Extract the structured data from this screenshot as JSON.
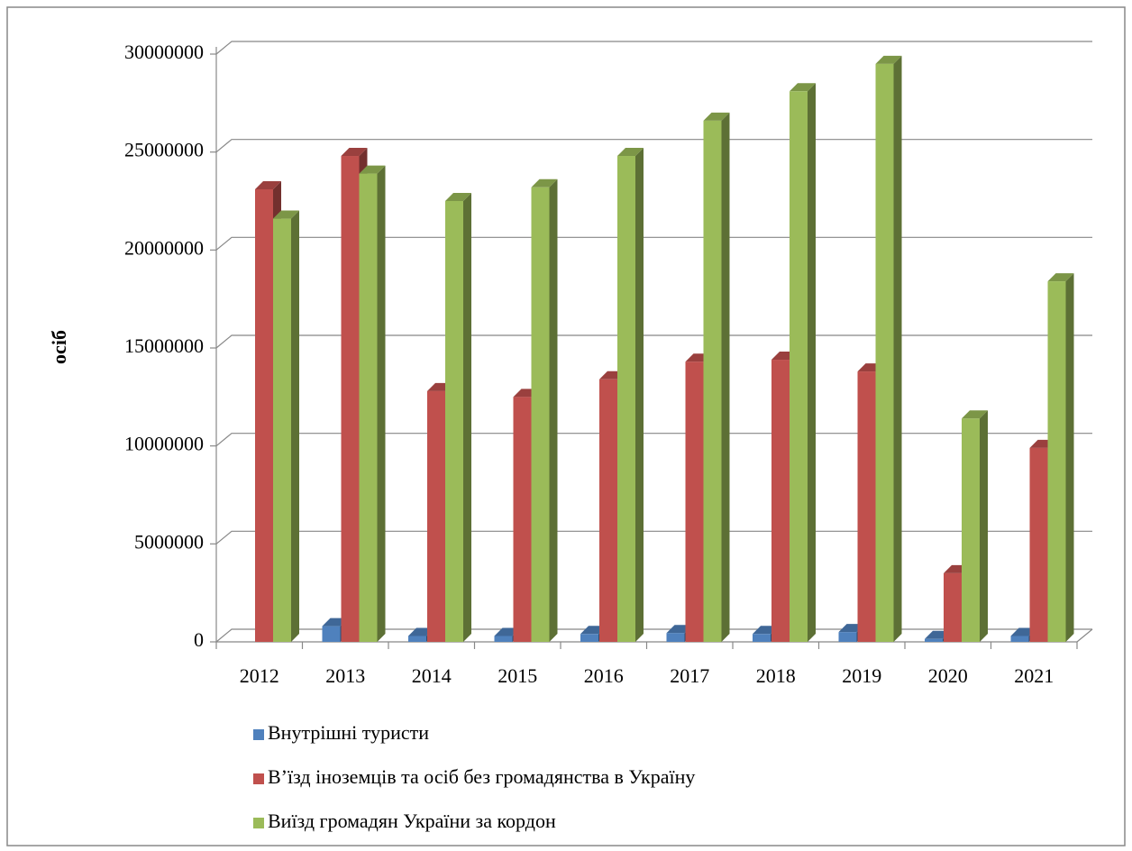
{
  "chart_data": {
    "type": "bar3d",
    "y_label": "осіб",
    "categories": [
      "2012",
      "2013",
      "2014",
      "2015",
      "2016",
      "2017",
      "2018",
      "2019",
      "2020",
      "2021"
    ],
    "series": [
      {
        "name": "Внутрішні туристи",
        "color": "#4f81bd",
        "values": [
          null,
          800000,
          300000,
          300000,
          400000,
          450000,
          400000,
          500000,
          150000,
          300000
        ]
      },
      {
        "name": "В’їзд іноземців та осіб без громадянства в Україну",
        "color": "#c0504d",
        "values": [
          23100000,
          24800000,
          12800000,
          12500000,
          13400000,
          14300000,
          14400000,
          13800000,
          3500000,
          9900000
        ]
      },
      {
        "name": "Виїзд громадян України за кордон",
        "color": "#9bbb59",
        "values": [
          21600000,
          23900000,
          22500000,
          23200000,
          24800000,
          26600000,
          28100000,
          29500000,
          11400000,
          18400000
        ]
      }
    ],
    "ylim": [
      0,
      30000000
    ],
    "yticks": [
      0,
      5000000,
      10000000,
      15000000,
      20000000,
      25000000,
      30000000
    ],
    "grid": true,
    "legend": "bottom"
  }
}
